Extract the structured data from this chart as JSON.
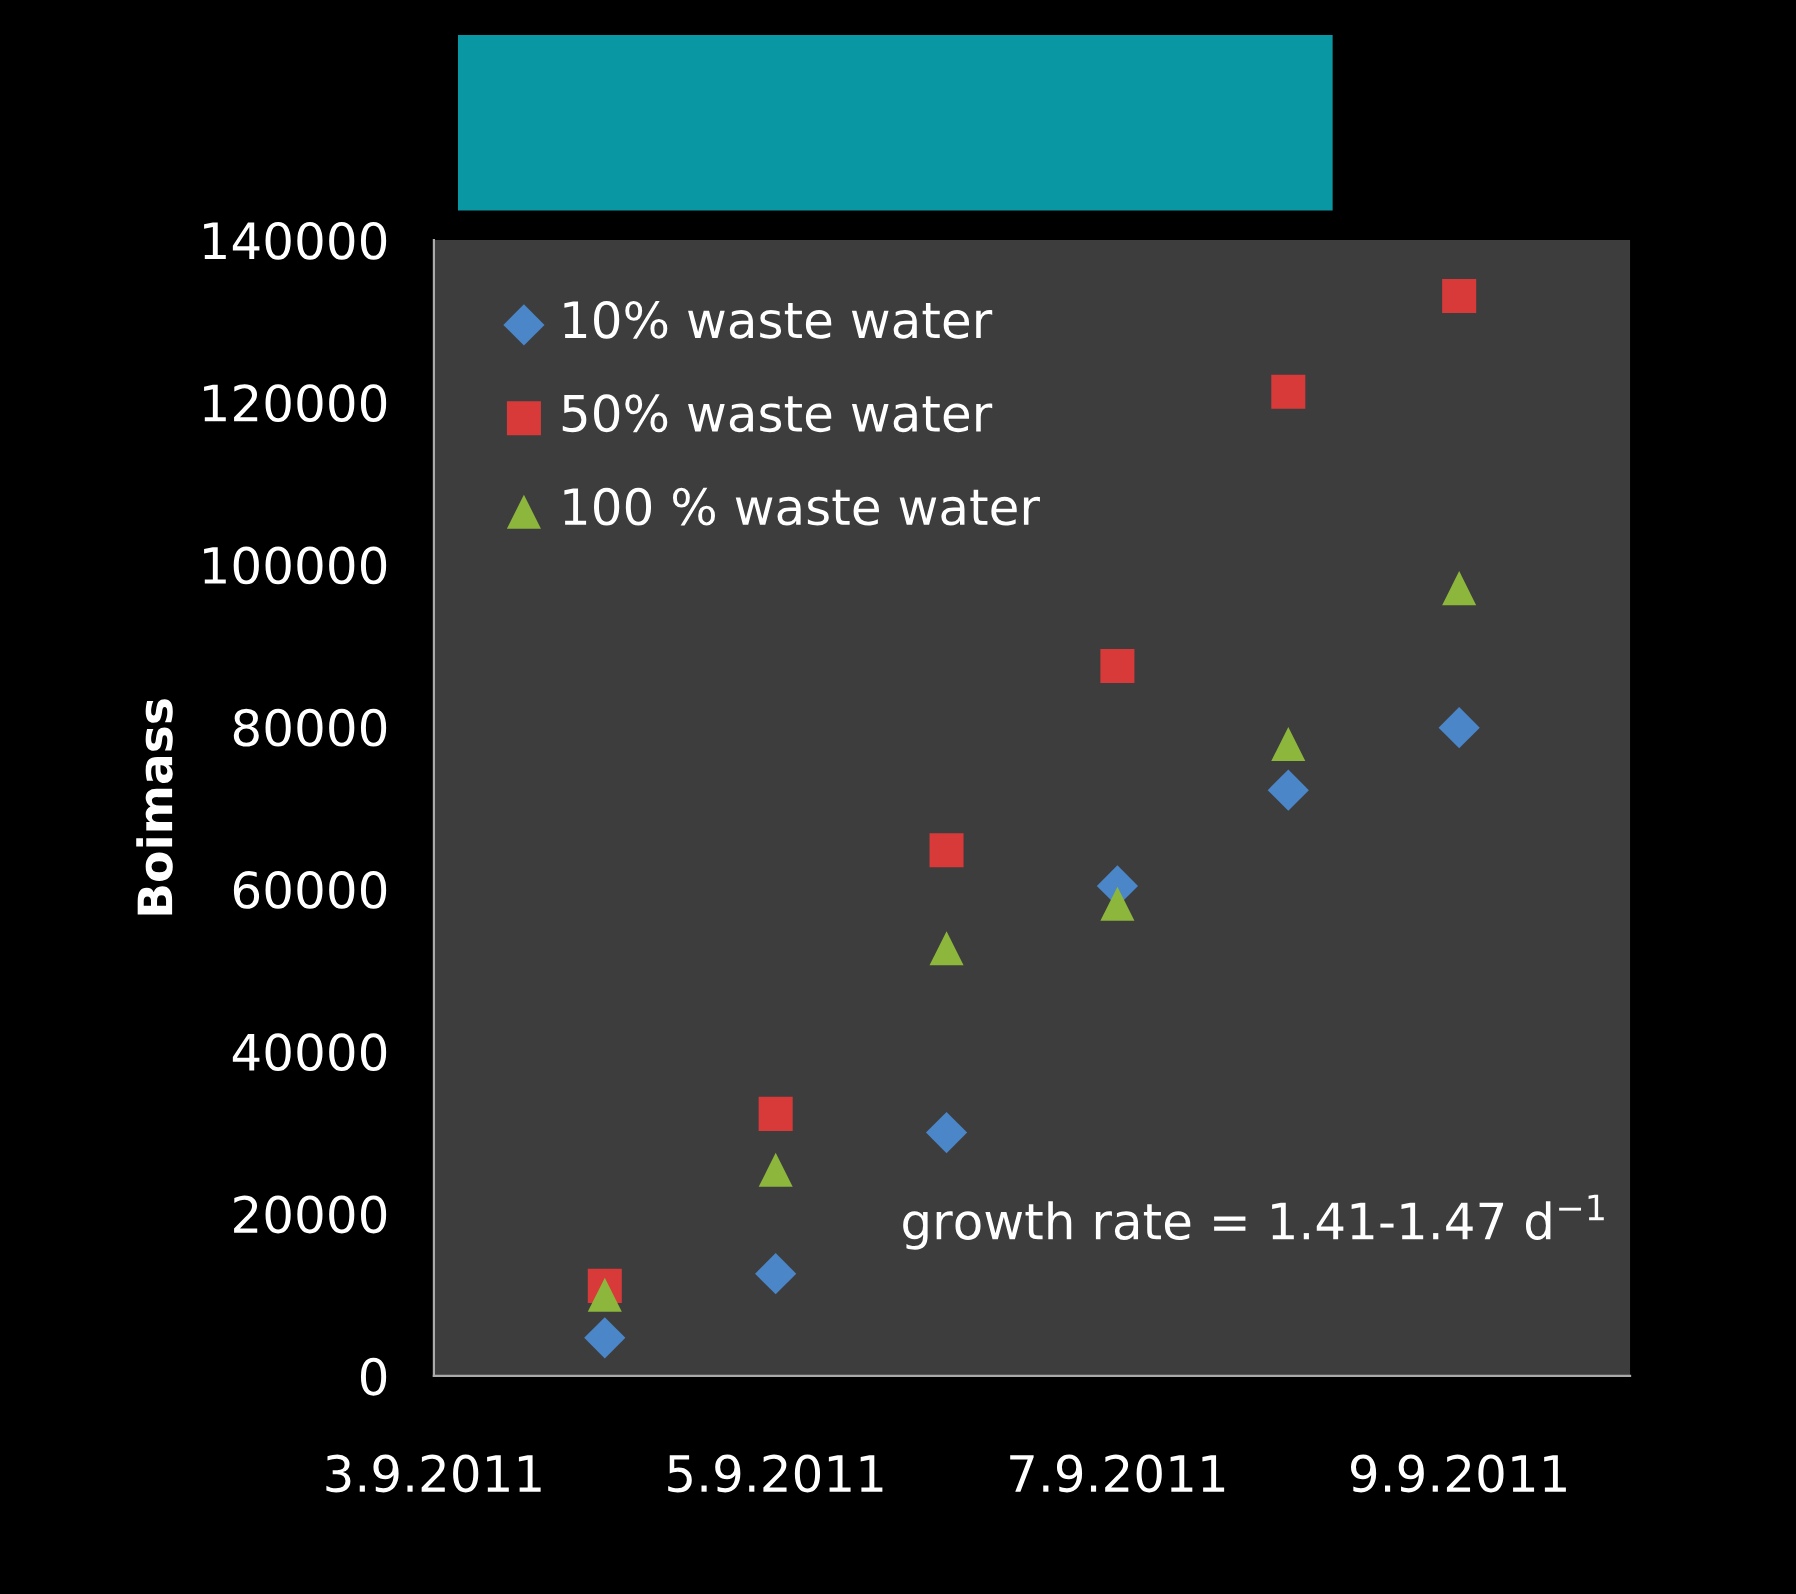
{
  "chart_data": {
    "type": "scatter",
    "ylabel": "Boimass",
    "x": [
      "2011-09-04",
      "2011-09-05",
      "2011-09-06",
      "2011-09-07",
      "2011-09-08",
      "2011-09-09"
    ],
    "series": [
      {
        "name": "10% waste water",
        "color": "#4a86c8",
        "marker": "diamond",
        "values": [
          4700,
          12600,
          30000,
          60400,
          72200,
          79900
        ]
      },
      {
        "name": "50% waste water",
        "color": "#d83a3a",
        "marker": "square",
        "values": [
          11100,
          32300,
          64800,
          87500,
          121300,
          133100
        ]
      },
      {
        "name": "100 % waste water",
        "color": "#8db63c",
        "marker": "triangle",
        "values": [
          10000,
          25400,
          52700,
          58200,
          77900,
          97100
        ]
      }
    ],
    "xlim": [
      "2011-09-03",
      "2011-09-10"
    ],
    "xticks": [
      {
        "value": "2011-09-03",
        "label": "3.9.2011"
      },
      {
        "value": "2011-09-05",
        "label": "5.9.2011"
      },
      {
        "value": "2011-09-07",
        "label": "7.9.2011"
      },
      {
        "value": "2011-09-09",
        "label": "9.9.2011"
      }
    ],
    "ylim": [
      0,
      140000
    ],
    "yticks": [
      0,
      20000,
      40000,
      60000,
      80000,
      100000,
      120000,
      140000
    ],
    "grid": false,
    "legend": "top left",
    "annotations": [
      "growth rate = 1.41-1.47 d$^{−1}$"
    ]
  }
}
